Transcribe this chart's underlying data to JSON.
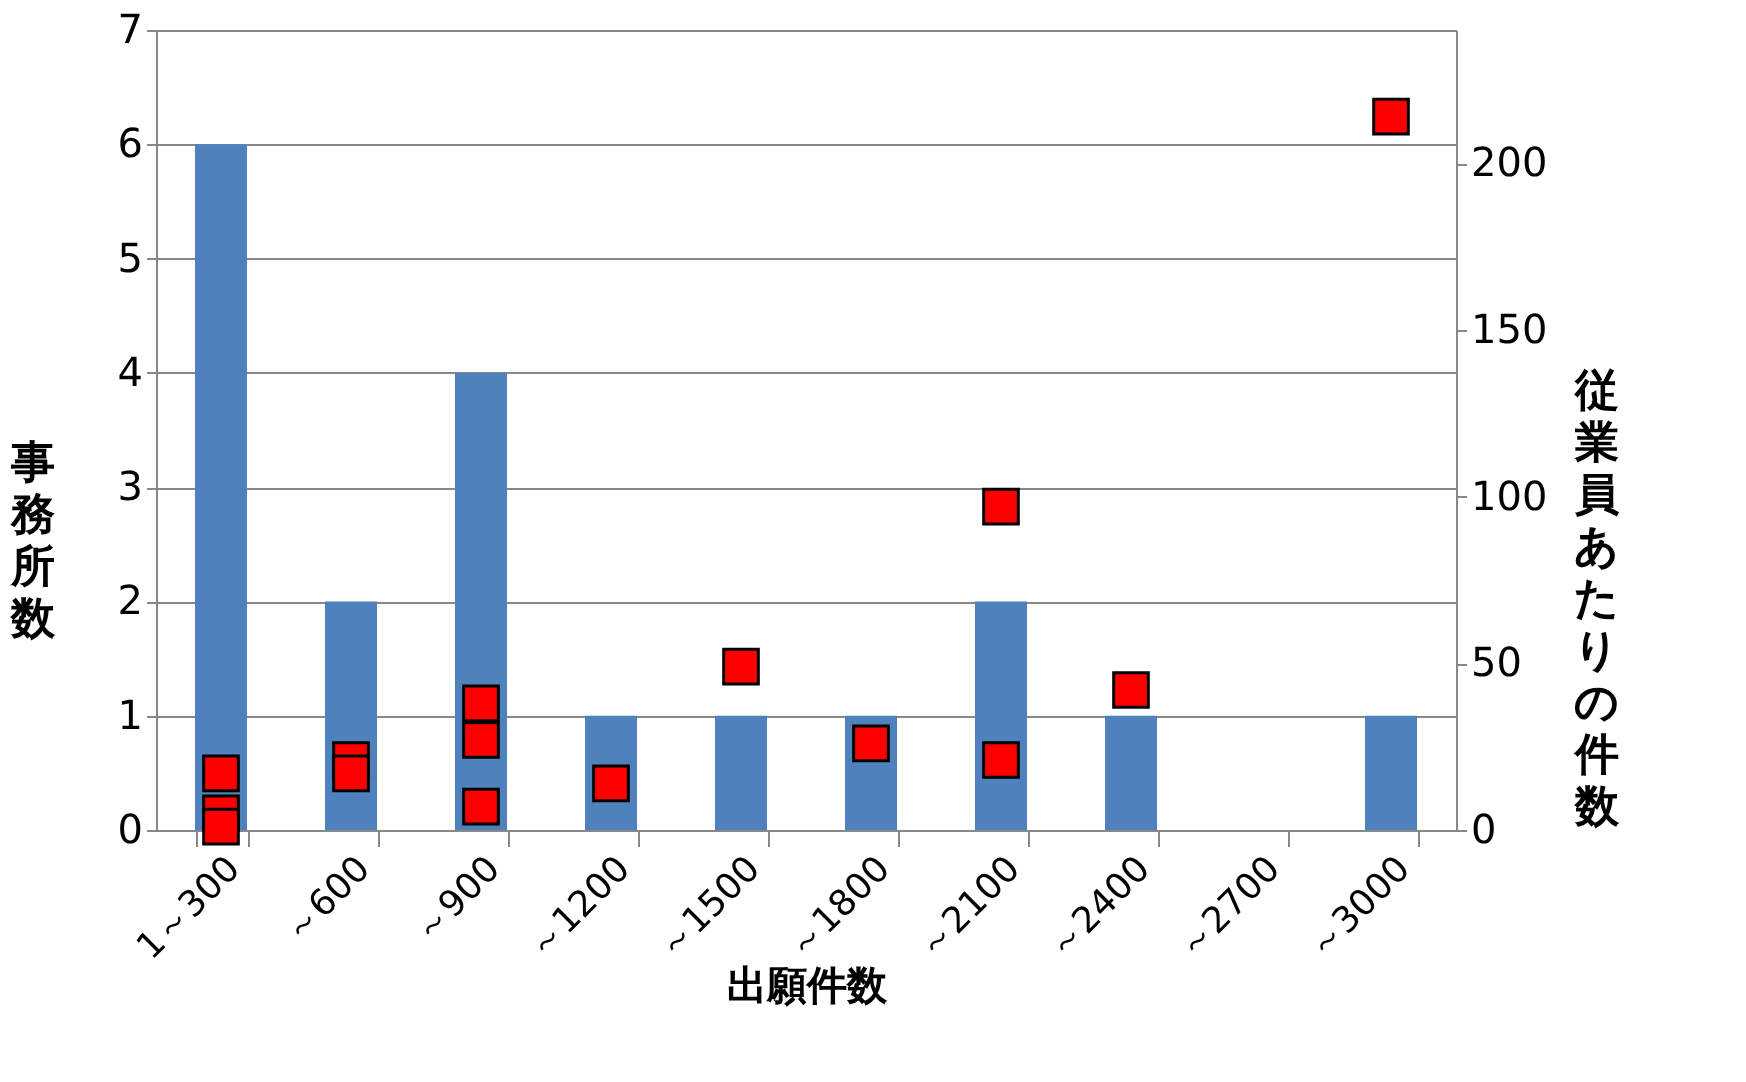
{
  "chart_data": {
    "type": "bar",
    "xlabel": "出願件数",
    "ylabel": "事務所数",
    "y2label": "従業員あたりの件数",
    "categories": [
      "1～300",
      "～600",
      "～900",
      "～1200",
      "～1500",
      "～1800",
      "～2100",
      "～2400",
      "～2700",
      "～3000"
    ],
    "series": [
      {
        "color": "#4f81bd",
        "values": [
          6,
          2,
          4,
          1,
          1,
          1,
          2,
          1,
          0,
          1
        ]
      },
      {
        "type": "scatter",
        "axis": "y2",
        "color": "#ff0000",
        "marker": "square",
        "x": [
          "1～300",
          "1～300",
          "1～300",
          "～600",
          "～600",
          "～900",
          "～900",
          "～900",
          "～1200",
          "～1500",
          "～1800",
          "～2100",
          "～2100",
          "～2400",
          "～3000"
        ],
        "values": [
          17,
          5,
          1,
          21,
          17,
          38,
          27,
          7,
          14,
          49,
          26,
          97,
          21,
          42,
          214
        ]
      }
    ],
    "ylim": [
      0,
      7
    ],
    "yticks": [
      0,
      1,
      2,
      3,
      4,
      5,
      6,
      7
    ],
    "y2lim": [
      0,
      240
    ],
    "y2ticks": [
      0,
      50,
      100,
      150,
      200
    ],
    "grid": "y",
    "legend": false
  }
}
